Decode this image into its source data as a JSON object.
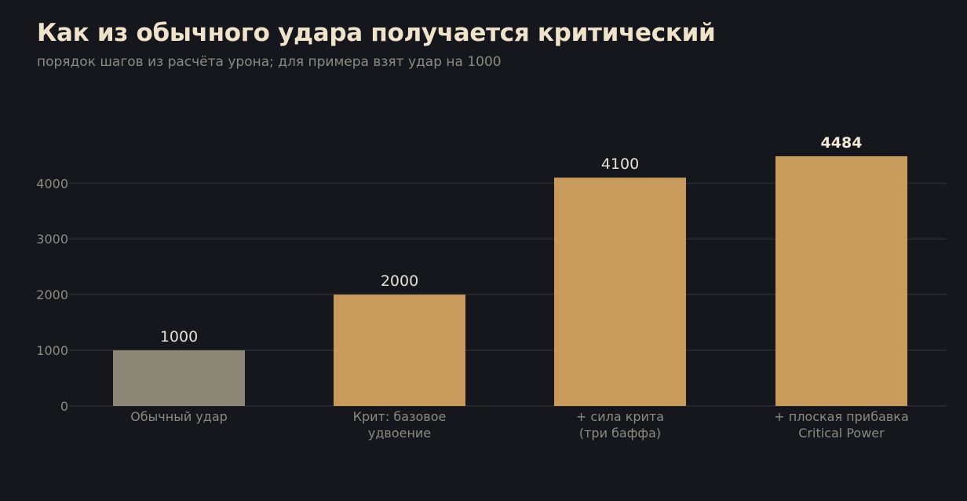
{
  "title": "Как из обычного удара получается критический",
  "subtitle": "порядок шагов из расчёта урона; для примера взят удар на 1000",
  "colors": {
    "background": "#16171c",
    "base_bar": "#8b8676",
    "crit_bar": "#c89a5b",
    "grid": "#2a2b31",
    "text_muted": "#8c8a82"
  },
  "chart_data": {
    "type": "bar",
    "categories": [
      [
        "Обычный удар"
      ],
      [
        "Крит: базовое",
        "удвоение"
      ],
      [
        "+ сила крита",
        "(три баффа)"
      ],
      [
        "+ плоская прибавка",
        "Critical Power"
      ]
    ],
    "values": [
      1000,
      2000,
      4100,
      4484
    ],
    "value_labels": [
      "1000",
      "2000",
      "4100",
      "4484"
    ],
    "highlight_last": true,
    "yticks": [
      0,
      1000,
      2000,
      3000,
      4000
    ],
    "ytick_labels": [
      "0",
      "1000",
      "2000",
      "3000",
      "4000"
    ],
    "ylim": [
      0,
      4484
    ],
    "grid": true,
    "xlabel": "",
    "ylabel": ""
  }
}
